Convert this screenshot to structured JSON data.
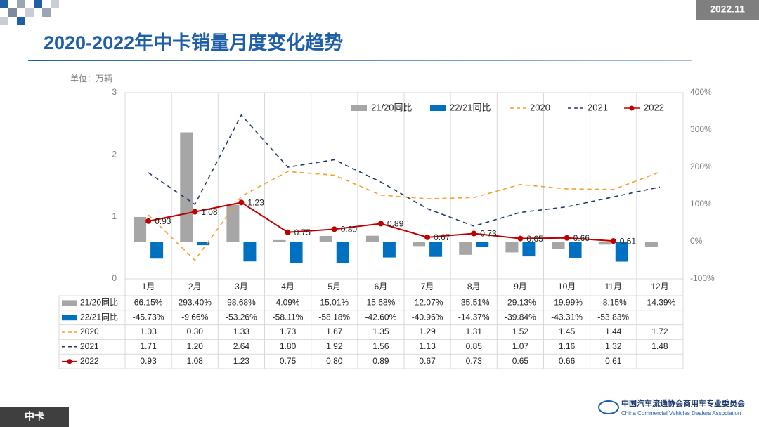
{
  "header": {
    "date": "2022.11",
    "title": "2020-2022年中卡销量月度变化趋势"
  },
  "footer": {
    "section": "中卡",
    "org_cn": "中国汽车流通协会商用车专业委员会",
    "org_en": "China Commercial Vehicles Dealers Association"
  },
  "chart_data": {
    "type": "combo",
    "y_label": "单位：万辆",
    "legend": "top-right",
    "grid": false,
    "categories": [
      "1月",
      "2月",
      "3月",
      "4月",
      "5月",
      "6月",
      "7月",
      "8月",
      "9月",
      "10月",
      "11月",
      "12月"
    ],
    "ylim": [
      0,
      3
    ],
    "yticks": [
      0,
      1,
      2,
      3
    ],
    "y2lim": [
      -100,
      400
    ],
    "y2ticks": [
      {
        "value": -100,
        "label": "-100%"
      },
      {
        "value": 0,
        "label": "0%"
      },
      {
        "value": 100,
        "label": "100%"
      },
      {
        "value": 200,
        "label": "200%"
      },
      {
        "value": 300,
        "label": "300%"
      },
      {
        "value": 400,
        "label": "400%"
      }
    ],
    "series": [
      {
        "name": "21/20同比",
        "type": "bar",
        "axis": "y2",
        "color": "#a6a6a6",
        "values": [
          66.15,
          293.4,
          98.68,
          4.09,
          15.01,
          15.68,
          -12.07,
          -35.51,
          -29.13,
          -19.99,
          -8.15,
          -14.39
        ],
        "value_labels": [
          "66.15%",
          "293.40%",
          "98.68%",
          "4.09%",
          "15.01%",
          "15.68%",
          "-12.07%",
          "-35.51%",
          "-29.13%",
          "-19.99%",
          "-8.15%",
          "-14.39%"
        ]
      },
      {
        "name": "22/21同比",
        "type": "bar",
        "axis": "y2",
        "color": "#0070c0",
        "values": [
          -45.73,
          -9.66,
          -53.26,
          -58.11,
          -58.18,
          -42.6,
          -40.96,
          -14.37,
          -39.84,
          -43.31,
          -53.83,
          null
        ],
        "value_labels": [
          "-45.73%",
          "-9.66%",
          "-53.26%",
          "-58.11%",
          "-58.18%",
          "-42.60%",
          "-40.96%",
          "-14.37%",
          "-39.84%",
          "-43.31%",
          "-53.83%",
          null
        ]
      },
      {
        "name": "2020",
        "type": "line",
        "color": "#f5a02a",
        "dashed": true,
        "values": [
          1.03,
          0.3,
          1.33,
          1.73,
          1.67,
          1.35,
          1.29,
          1.31,
          1.52,
          1.45,
          1.44,
          1.72
        ],
        "value_labels": [
          "1.03",
          "0.30",
          "1.33",
          "1.73",
          "1.67",
          "1.35",
          "1.29",
          "1.31",
          "1.52",
          "1.45",
          "1.44",
          "1.72"
        ]
      },
      {
        "name": "2021",
        "type": "line",
        "color": "#1f3a6e",
        "dashed": true,
        "values": [
          1.71,
          1.2,
          2.64,
          1.8,
          1.92,
          1.56,
          1.13,
          0.85,
          1.07,
          1.16,
          1.32,
          1.48
        ],
        "value_labels": [
          "1.71",
          "1.20",
          "2.64",
          "1.80",
          "1.92",
          "1.56",
          "1.13",
          "0.85",
          "1.07",
          "1.16",
          "1.32",
          "1.48"
        ]
      },
      {
        "name": "2022",
        "type": "line",
        "color": "#c00000",
        "dashed": false,
        "markers": true,
        "data_labels": true,
        "values": [
          0.93,
          1.08,
          1.23,
          0.75,
          0.8,
          0.89,
          0.67,
          0.73,
          0.65,
          0.66,
          0.61,
          null
        ],
        "value_labels": [
          "0.93",
          "1.08",
          "1.23",
          "0.75",
          "0.80",
          "0.89",
          "0.67",
          "0.73",
          "0.65",
          "0.66",
          "0.61",
          null
        ]
      }
    ]
  }
}
